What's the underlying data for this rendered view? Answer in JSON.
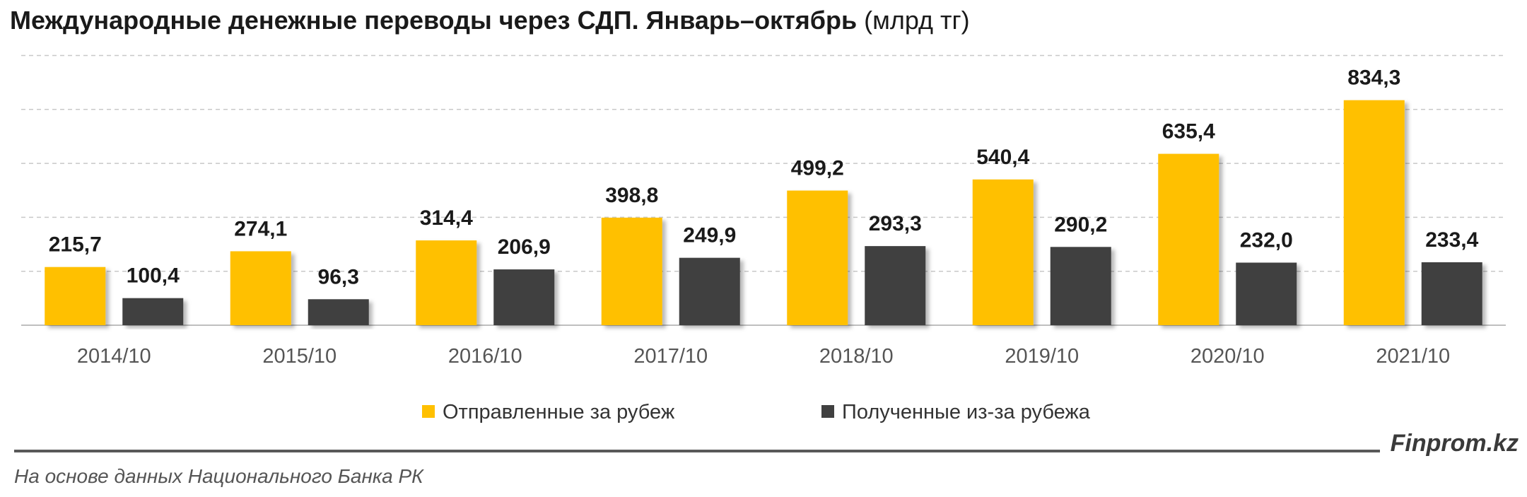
{
  "title": {
    "main": "Международные денежные переводы через СДП. Январь–октябрь",
    "unit": "(млрд тг)"
  },
  "chart_data": {
    "type": "bar",
    "title": "Международные денежные переводы через СДП. Январь–октябрь (млрд тг)",
    "categories": [
      "2014/10",
      "2015/10",
      "2016/10",
      "2017/10",
      "2018/10",
      "2019/10",
      "2020/10",
      "2021/10"
    ],
    "series": [
      {
        "name": "Отправленные за рубеж",
        "color": "#FFC000",
        "values": [
          215.7,
          274.1,
          314.4,
          398.8,
          499.2,
          540.4,
          635.4,
          834.3
        ],
        "labels": [
          "215,7",
          "274,1",
          "314,4",
          "398,8",
          "499,2",
          "540,4",
          "635,4",
          "834,3"
        ]
      },
      {
        "name": "Полученные из-за рубежа",
        "color": "#404040",
        "values": [
          100.4,
          96.3,
          206.9,
          249.9,
          293.3,
          290.2,
          232.0,
          233.4
        ],
        "labels": [
          "100,4",
          "96,3",
          "206,9",
          "249,9",
          "293,3",
          "290,2",
          "232,0",
          "233,4"
        ]
      }
    ],
    "ylim": [
      0,
      1000
    ],
    "grid": true,
    "legend_position": "bottom"
  },
  "footer": {
    "brand": "Finprom.kz",
    "source": "На основе данных Национального Банка РК"
  }
}
